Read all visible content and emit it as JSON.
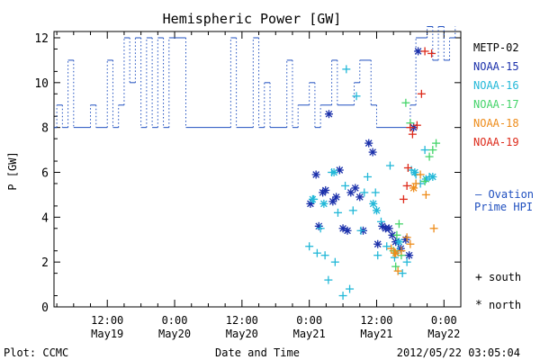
{
  "chart_data": {
    "type": "scatter",
    "title": "Hemispheric Power [GW]",
    "ylabel": "P [GW]",
    "xlabel": "Date and Time",
    "ylim": [
      0,
      12.5
    ],
    "yticks": [
      0,
      2,
      4,
      6,
      8,
      10,
      12
    ],
    "xticks": [
      {
        "time": "12:00",
        "date": "May19",
        "t": 12
      },
      {
        "time": "0:00",
        "date": "May20",
        "t": 24
      },
      {
        "time": "12:00",
        "date": "May20",
        "t": 36
      },
      {
        "time": "0:00",
        "date": "May21",
        "t": 48
      },
      {
        "time": "12:00",
        "date": "May21",
        "t": 60
      },
      {
        "time": "0:00",
        "date": "May22",
        "t": 72
      }
    ],
    "x_unit": "hours since 2012-05-19 00:00 UT",
    "xlim": [
      2.5,
      75
    ],
    "grid": false,
    "legend_position": "right",
    "series": [
      {
        "name": "METP-02",
        "color": "#000000",
        "style": "none",
        "points": []
      },
      {
        "name": "Ovation Prime HPI",
        "color": "#1f4fbf",
        "style": "dotted-step",
        "points": [
          [
            2.5,
            8
          ],
          [
            3,
            8
          ],
          [
            3,
            9
          ],
          [
            4,
            9
          ],
          [
            4,
            8
          ],
          [
            5,
            8
          ],
          [
            5,
            11
          ],
          [
            6,
            11
          ],
          [
            6,
            8
          ],
          [
            9,
            8
          ],
          [
            9,
            9
          ],
          [
            10,
            9
          ],
          [
            10,
            8
          ],
          [
            12,
            8
          ],
          [
            12,
            11
          ],
          [
            13,
            11
          ],
          [
            13,
            8
          ],
          [
            14,
            8
          ],
          [
            14,
            9
          ],
          [
            15,
            9
          ],
          [
            15,
            12
          ],
          [
            16,
            12
          ],
          [
            16,
            10
          ],
          [
            17,
            10
          ],
          [
            17,
            12
          ],
          [
            18,
            12
          ],
          [
            18,
            8
          ],
          [
            19,
            8
          ],
          [
            19,
            12
          ],
          [
            20,
            12
          ],
          [
            20,
            8
          ],
          [
            21,
            8
          ],
          [
            21,
            12
          ],
          [
            22,
            12
          ],
          [
            22,
            8
          ],
          [
            23,
            8
          ],
          [
            23,
            12
          ],
          [
            26,
            12
          ],
          [
            26,
            8
          ],
          [
            34,
            8
          ],
          [
            34,
            12
          ],
          [
            35,
            12
          ],
          [
            35,
            8
          ],
          [
            38,
            8
          ],
          [
            38,
            12
          ],
          [
            39,
            12
          ],
          [
            39,
            8
          ],
          [
            40,
            8
          ],
          [
            40,
            10
          ],
          [
            41,
            10
          ],
          [
            41,
            8
          ],
          [
            44,
            8
          ],
          [
            44,
            11
          ],
          [
            45,
            11
          ],
          [
            45,
            8
          ],
          [
            46,
            8
          ],
          [
            46,
            9
          ],
          [
            48,
            9
          ],
          [
            48,
            10
          ],
          [
            49,
            10
          ],
          [
            49,
            8
          ],
          [
            50,
            8
          ],
          [
            50,
            9
          ],
          [
            52,
            9
          ],
          [
            52,
            11
          ],
          [
            53,
            11
          ],
          [
            53,
            9
          ],
          [
            56,
            9
          ],
          [
            56,
            10
          ],
          [
            57,
            10
          ],
          [
            57,
            11
          ],
          [
            59,
            11
          ],
          [
            59,
            9
          ],
          [
            60,
            9
          ],
          [
            60,
            8
          ],
          [
            66,
            8
          ],
          [
            66,
            9
          ],
          [
            67,
            9
          ],
          [
            67,
            12
          ],
          [
            69,
            12
          ],
          [
            69,
            12.5
          ],
          [
            70,
            12.5
          ],
          [
            70,
            11
          ],
          [
            71,
            11
          ],
          [
            71,
            12.5
          ],
          [
            72,
            12.5
          ],
          [
            72,
            11
          ],
          [
            73,
            11
          ],
          [
            73,
            12
          ],
          [
            74,
            12
          ],
          [
            74,
            12.5
          ]
        ]
      },
      {
        "name": "NOAA-15",
        "color": "#1a2faa",
        "points": [
          [
            48.2,
            4.6,
            "n"
          ],
          [
            49.2,
            5.9,
            "n"
          ],
          [
            49.7,
            3.6,
            "n"
          ],
          [
            50.4,
            5.1,
            "n"
          ],
          [
            50.9,
            5.2,
            "n"
          ],
          [
            51.5,
            8.6,
            "n"
          ],
          [
            52.2,
            4.7,
            "n"
          ],
          [
            52.8,
            4.9,
            "n"
          ],
          [
            53.4,
            6.1,
            "n"
          ],
          [
            54.0,
            3.5,
            "n"
          ],
          [
            54.8,
            3.4,
            "n"
          ],
          [
            55.4,
            5.1,
            "n"
          ],
          [
            56.2,
            5.3,
            "n"
          ],
          [
            57.0,
            4.9,
            "n"
          ],
          [
            57.6,
            3.4,
            "n"
          ],
          [
            58.6,
            7.3,
            "n"
          ],
          [
            59.3,
            6.9,
            "n"
          ],
          [
            60.2,
            2.8,
            "n"
          ],
          [
            61.0,
            3.6,
            "n"
          ],
          [
            61.6,
            3.5,
            "n"
          ],
          [
            62.2,
            3.5,
            "n"
          ],
          [
            62.8,
            3.2,
            "n"
          ],
          [
            63.4,
            2.9,
            "n"
          ],
          [
            64.3,
            2.6,
            "n"
          ],
          [
            65.2,
            3.0,
            "n"
          ],
          [
            66.6,
            8.0,
            "n"
          ],
          [
            67.4,
            11.4,
            "n"
          ],
          [
            65.8,
            2.3,
            "n"
          ]
        ]
      },
      {
        "name": "NOAA-16",
        "color": "#22b8d8",
        "points": [
          [
            48.0,
            2.7,
            "s"
          ],
          [
            48.8,
            4.8,
            "s"
          ],
          [
            49.4,
            2.4,
            "s"
          ],
          [
            50.0,
            3.5,
            "s"
          ],
          [
            50.8,
            2.3,
            "s"
          ],
          [
            51.4,
            1.2,
            "s"
          ],
          [
            52.0,
            6.0,
            "s"
          ],
          [
            52.6,
            2.0,
            "s"
          ],
          [
            53.1,
            4.2,
            "s"
          ],
          [
            54.0,
            0.5,
            "s"
          ],
          [
            54.4,
            5.4,
            "s"
          ],
          [
            54.6,
            10.6,
            "s"
          ],
          [
            55.2,
            0.8,
            "s"
          ],
          [
            55.8,
            4.3,
            "s"
          ],
          [
            56.4,
            9.4,
            "s"
          ],
          [
            57.2,
            3.4,
            "s"
          ],
          [
            57.8,
            5.1,
            "s"
          ],
          [
            58.4,
            5.8,
            "s"
          ],
          [
            59.8,
            5.1,
            "s"
          ],
          [
            60.2,
            2.3,
            "s"
          ],
          [
            60.8,
            3.8,
            "s"
          ],
          [
            61.8,
            2.7,
            "s"
          ],
          [
            62.4,
            6.3,
            "s"
          ],
          [
            63.2,
            2.2,
            "s"
          ],
          [
            63.8,
            2.5,
            "s"
          ],
          [
            64.6,
            1.5,
            "s"
          ],
          [
            65.4,
            2.0,
            "s"
          ],
          [
            66.2,
            6.1,
            "s"
          ],
          [
            67.0,
            5.9,
            "s"
          ],
          [
            67.8,
            5.5,
            "s"
          ],
          [
            69.4,
            5.8,
            "s"
          ],
          [
            68.6,
            7.0,
            "s"
          ],
          [
            48.6,
            4.8,
            "n"
          ],
          [
            50.6,
            4.6,
            "n"
          ],
          [
            52.4,
            6.0,
            "n"
          ],
          [
            59.4,
            4.6,
            "n"
          ],
          [
            66.8,
            6.0,
            "n"
          ],
          [
            68.8,
            5.7,
            "n"
          ],
          [
            60.0,
            4.3,
            "n"
          ],
          [
            64.0,
            2.9,
            "n"
          ],
          [
            70.0,
            5.8,
            "n"
          ]
        ]
      },
      {
        "name": "NOAA-17",
        "color": "#44d46a",
        "points": [
          [
            63.0,
            2.5,
            "s"
          ],
          [
            63.6,
            3.2,
            "s"
          ],
          [
            64.0,
            3.7,
            "s"
          ],
          [
            64.4,
            2.3,
            "s"
          ],
          [
            65.2,
            9.1,
            "s"
          ],
          [
            66.0,
            8.2,
            "s"
          ],
          [
            68.6,
            5.6,
            "s"
          ],
          [
            69.4,
            6.7,
            "s"
          ],
          [
            70.0,
            7.0,
            "s"
          ],
          [
            70.6,
            7.3,
            "s"
          ],
          [
            63.4,
            1.8,
            "s"
          ]
        ]
      },
      {
        "name": "NOAA-18",
        "color": "#ee8c1a",
        "points": [
          [
            62.6,
            2.6,
            "s"
          ],
          [
            63.2,
            2.4,
            "s"
          ],
          [
            63.8,
            1.6,
            "s"
          ],
          [
            64.4,
            2.5,
            "s"
          ],
          [
            65.4,
            3.1,
            "s"
          ],
          [
            66.0,
            2.8,
            "s"
          ],
          [
            67.0,
            5.5,
            "s"
          ],
          [
            67.8,
            5.9,
            "s"
          ],
          [
            68.8,
            5.0,
            "s"
          ],
          [
            70.2,
            3.5,
            "s"
          ],
          [
            66.6,
            5.3,
            "n"
          ],
          [
            63.4,
            2.4,
            "n"
          ]
        ]
      },
      {
        "name": "NOAA-19",
        "color": "#dd2a1a",
        "points": [
          [
            64.8,
            4.8,
            "s"
          ],
          [
            65.6,
            6.2,
            "s"
          ],
          [
            66.4,
            7.7,
            "s"
          ],
          [
            67.2,
            8.1,
            "s"
          ],
          [
            68.0,
            9.5,
            "s"
          ],
          [
            68.6,
            11.4,
            "s"
          ],
          [
            69.8,
            11.3,
            "s"
          ],
          [
            66.0,
            8.0,
            "s"
          ],
          [
            65.4,
            5.4,
            "s"
          ]
        ]
      }
    ],
    "legend": [
      "METP-02",
      "NOAA-15",
      "NOAA-16",
      "NOAA-17",
      "NOAA-18",
      "NOAA-19"
    ],
    "hpi_label_line1": "— Ovation",
    "hpi_label_line2": "Prime HPI",
    "marker_legend": [
      {
        "symbol": "+",
        "label": "south"
      },
      {
        "symbol": "*",
        "label": "north"
      }
    ]
  },
  "footer": {
    "left": "Plot: CCMC",
    "center": "Date and Time",
    "right": "2012/05/22 03:05:04"
  },
  "colors": {
    "axis": "#000000",
    "hpi": "#1f4fbf",
    "background": "#ffffff"
  }
}
